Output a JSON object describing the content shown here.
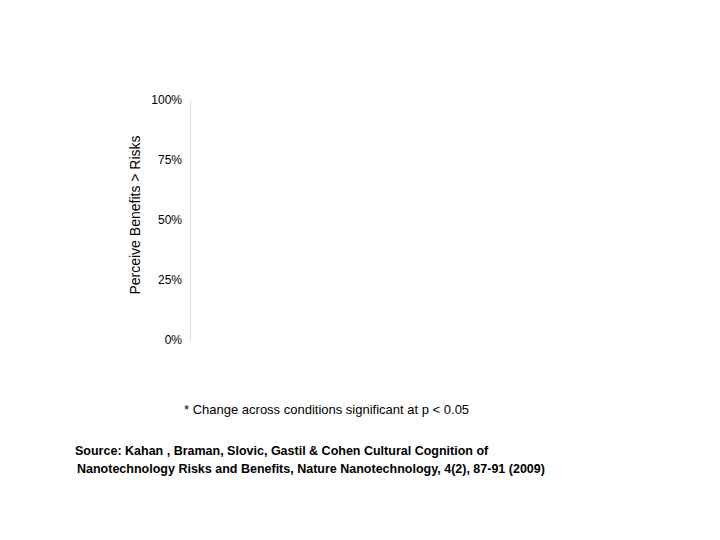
{
  "chart_data": {
    "type": "bar",
    "y_label": "Perceive Benefits > Risks",
    "categories": [],
    "values": [],
    "ylim": [
      0,
      100
    ],
    "yticks": [
      {
        "value": 0,
        "label": "0%"
      },
      {
        "value": 25,
        "label": "25%"
      },
      {
        "value": 50,
        "label": "50%"
      },
      {
        "value": 75,
        "label": "75%"
      },
      {
        "value": 100,
        "label": "100%"
      }
    ],
    "annotations": [
      "* Change across conditions significant at p < 0.05",
      "Source: Kahan , Braman, Slovic, Gastil & Cohen Cultural Cognition of",
      "Nanotechnology Risks and Benefits, Nature Nanotechnology, 4(2), 87-91 (2009)"
    ]
  }
}
